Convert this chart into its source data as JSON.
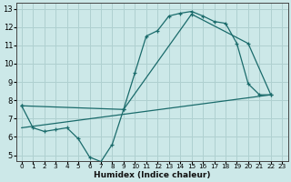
{
  "xlabel": "Humidex (Indice chaleur)",
  "bg_color": "#cce8e8",
  "grid_color": "#afd0d0",
  "line_color": "#1a6b6b",
  "xlim": [
    -0.5,
    23.5
  ],
  "ylim": [
    4.7,
    13.3
  ],
  "xticks": [
    0,
    1,
    2,
    3,
    4,
    5,
    6,
    7,
    8,
    9,
    10,
    11,
    12,
    13,
    14,
    15,
    16,
    17,
    18,
    19,
    20,
    21,
    22,
    23
  ],
  "yticks": [
    5,
    6,
    7,
    8,
    9,
    10,
    11,
    12,
    13
  ],
  "line1_x": [
    0,
    1,
    2,
    3,
    4,
    5,
    6,
    7,
    8,
    9,
    10,
    11,
    12,
    13,
    14,
    15,
    16,
    17,
    18,
    19,
    20,
    21,
    22
  ],
  "line1_y": [
    7.7,
    6.5,
    6.3,
    6.4,
    6.5,
    5.9,
    4.9,
    4.65,
    5.6,
    7.5,
    9.5,
    11.5,
    11.8,
    12.6,
    12.75,
    12.85,
    12.6,
    12.3,
    12.2,
    11.1,
    8.9,
    8.3,
    8.3
  ],
  "line2_x": [
    0,
    9,
    15,
    20,
    22
  ],
  "line2_y": [
    7.7,
    7.5,
    12.7,
    11.1,
    8.3
  ],
  "line3_x": [
    0,
    22
  ],
  "line3_y": [
    6.5,
    8.3
  ],
  "xlabel_fontsize": 6.5,
  "tick_fontsize_x": 5.2,
  "tick_fontsize_y": 6.0
}
